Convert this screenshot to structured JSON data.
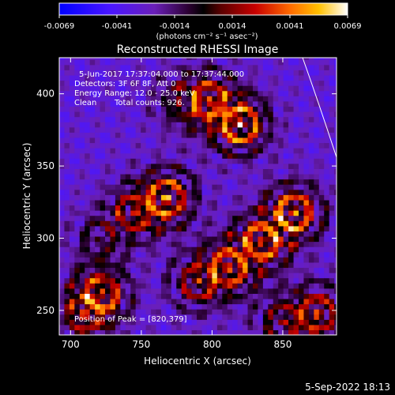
{
  "colorbar": {
    "ticks": [
      "-0.0069",
      "-0.0041",
      "-0.0014",
      "0.0014",
      "0.0041",
      "0.0069"
    ],
    "min": -0.0069,
    "max": 0.0069,
    "units_label": "(photons cm⁻² s⁻¹ asec⁻²)"
  },
  "chart_data": {
    "type": "heatmap",
    "title": "Reconstructed RHESSI Image",
    "xlabel": "Heliocentric X (arcsec)",
    "ylabel": "Heliocentric Y (arcsec)",
    "xlim": [
      692,
      888
    ],
    "ylim": [
      233,
      425
    ],
    "xticks": [
      700,
      750,
      800,
      850
    ],
    "yticks": [
      250,
      300,
      350,
      400
    ],
    "annotations": {
      "time_range": "5-Jun-2017 17:37:04.000 to 17:37:44.000",
      "detectors": "Detectors: 3F 6F 8F, Att 0",
      "energy_range": "Energy Range: 12.0 - 25.0 keV",
      "clean": "Clean",
      "total_counts": "Total counts: 926.",
      "peak": "Position of Peak = [820,379]"
    },
    "peak_position": [
      820,
      379
    ],
    "blobs": [
      {
        "x": 820,
        "y": 379,
        "amp": 1.0
      },
      {
        "x": 798,
        "y": 396,
        "amp": 0.7
      },
      {
        "x": 768,
        "y": 328,
        "amp": 0.9
      },
      {
        "x": 745,
        "y": 318,
        "amp": 0.6
      },
      {
        "x": 858,
        "y": 318,
        "amp": 0.95
      },
      {
        "x": 835,
        "y": 298,
        "amp": 0.85
      },
      {
        "x": 812,
        "y": 280,
        "amp": 0.75
      },
      {
        "x": 790,
        "y": 270,
        "amp": 0.6
      },
      {
        "x": 722,
        "y": 262,
        "amp": 0.75
      },
      {
        "x": 710,
        "y": 248,
        "amp": 0.65
      },
      {
        "x": 875,
        "y": 248,
        "amp": 0.75
      },
      {
        "x": 850,
        "y": 242,
        "amp": 0.5
      },
      {
        "x": 778,
        "y": 395,
        "amp": 0.4
      },
      {
        "x": 720,
        "y": 300,
        "amp": 0.35
      }
    ],
    "limb_curve": [
      [
        864,
        425
      ],
      [
        876,
        392
      ],
      [
        888,
        356
      ]
    ]
  },
  "footer": {
    "date": "5-Sep-2022 18:13"
  }
}
